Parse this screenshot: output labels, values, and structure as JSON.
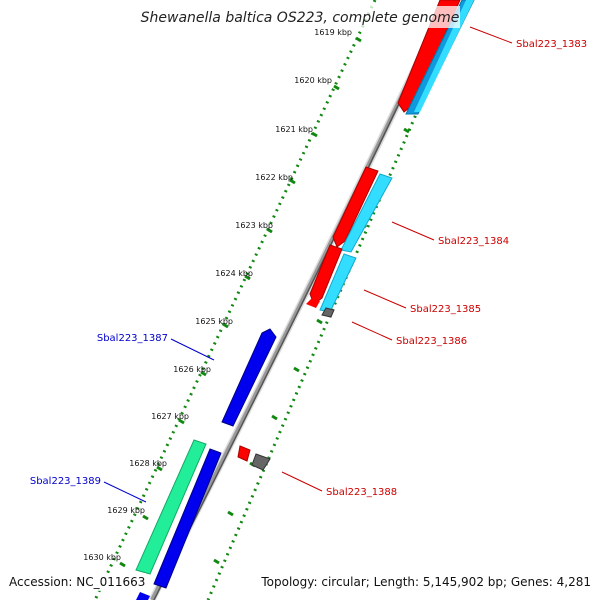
{
  "title": "Shewanella baltica OS223, complete genome",
  "ticks": [
    "1619 kbp",
    "1620 kbp",
    "1621 kbp",
    "1622 kbp",
    "1623 kbp",
    "1624 kbp",
    "1625 kbp",
    "1626 kbp",
    "1627 kbp",
    "1628 kbp",
    "1629 kbp",
    "1630 kbp"
  ],
  "gene_labels": {
    "g1383": "Sbal223_1383",
    "g1384": "Sbal223_1384",
    "g1385": "Sbal223_1385",
    "g1386": "Sbal223_1386",
    "g1387": "Sbal223_1387",
    "g1388": "Sbal223_1388",
    "g1389": "Sbal223_1389"
  },
  "footer": {
    "accession": "Accession: NC_011663",
    "summary": "Topology: circular; Length: 5,145,902 bp; Genes: 4,281"
  },
  "colors": {
    "label_red": "#cc0000",
    "label_blue": "#0000cc",
    "backbone": "#888888",
    "dots": "#118811",
    "gene_red": "#ff0000",
    "gene_cyan": "#33ddff",
    "gene_blue": "#0000ee",
    "gene_green": "#22ee99",
    "gene_gray": "#666666"
  }
}
